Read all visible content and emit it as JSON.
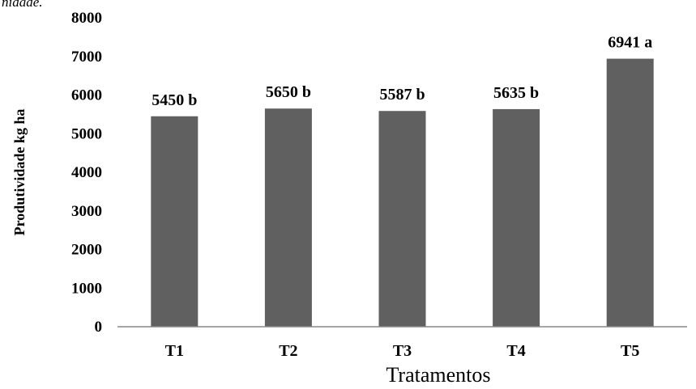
{
  "top_fragment": "nidade.",
  "chart_data": {
    "type": "bar",
    "categories": [
      "T1",
      "T2",
      "T3",
      "T4",
      "T5"
    ],
    "values": [
      5450,
      5650,
      5587,
      5635,
      6941
    ],
    "data_labels": [
      "5450 b",
      "5650 b",
      "5587 b",
      "5635 b",
      "6941 a"
    ],
    "xlabel": "Tratamentos",
    "ylabel": "Produtividade kg ha",
    "ylim": [
      0,
      8000
    ],
    "yticks": [
      0,
      1000,
      2000,
      3000,
      4000,
      5000,
      6000,
      7000,
      8000
    ],
    "bar_color": "#606060",
    "grid": false,
    "legend": "none"
  }
}
